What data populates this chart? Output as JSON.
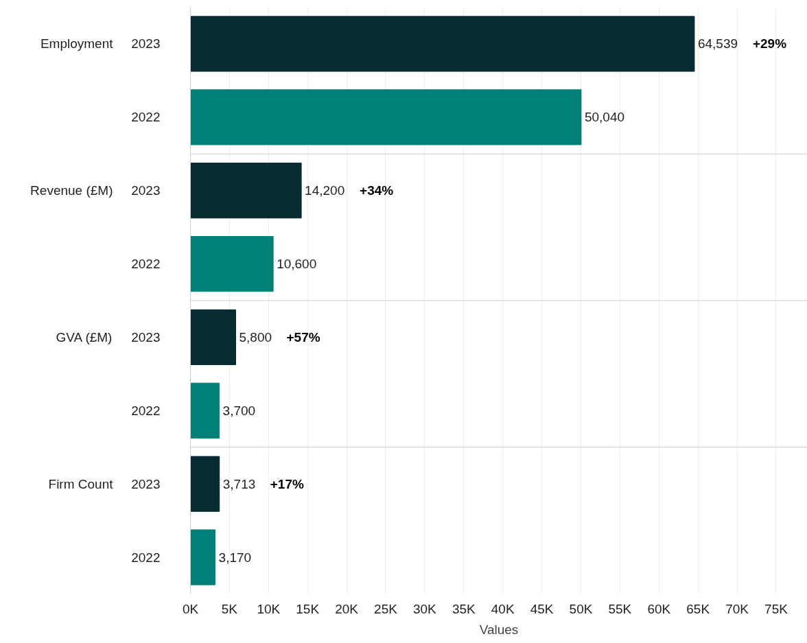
{
  "chart_data": {
    "type": "bar",
    "orientation": "horizontal",
    "xlabel": "Values",
    "categories": [
      "2023",
      "2022",
      "2023",
      "2022",
      "2023",
      "2022",
      "2023",
      "2022"
    ],
    "values": [
      64539,
      50040,
      14200,
      10600,
      5800,
      3700,
      3713,
      3170
    ],
    "colors": [
      "#062b31",
      "#008077",
      "#062b31",
      "#008077",
      "#062b31",
      "#008077",
      "#062b31",
      "#008077"
    ],
    "value_labels": [
      "64,539",
      "50,040",
      "14,200",
      "10,600",
      "5,800",
      "3,700",
      "3,713",
      "3,170"
    ],
    "annotations": [
      "Employment",
      "Revenue (£M)",
      "GVA (£M)",
      "Firm Count",
      "+29%",
      "+34%",
      "+57%",
      "+17%"
    ],
    "xlim": [
      0,
      79000
    ],
    "xticks": [
      {
        "value": 0,
        "label": "0K"
      },
      {
        "value": 5000,
        "label": "5K"
      },
      {
        "value": 10000,
        "label": "10K"
      },
      {
        "value": 15000,
        "label": "15K"
      },
      {
        "value": 20000,
        "label": "20K"
      },
      {
        "value": 25000,
        "label": "25K"
      },
      {
        "value": 30000,
        "label": "30K"
      },
      {
        "value": 35000,
        "label": "35K"
      },
      {
        "value": 40000,
        "label": "40K"
      },
      {
        "value": 45000,
        "label": "45K"
      },
      {
        "value": 50000,
        "label": "50K"
      },
      {
        "value": 55000,
        "label": "55K"
      },
      {
        "value": 60000,
        "label": "60K"
      },
      {
        "value": 65000,
        "label": "65K"
      },
      {
        "value": 70000,
        "label": "70K"
      },
      {
        "value": 75000,
        "label": "75K"
      }
    ],
    "grid": "x"
  }
}
